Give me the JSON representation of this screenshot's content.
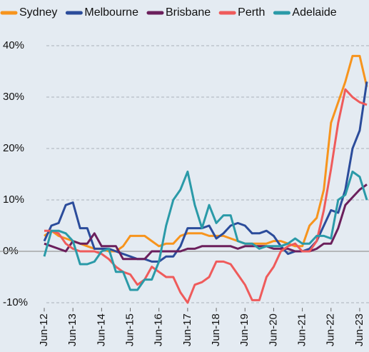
{
  "chart_data": {
    "type": "line",
    "categories": [
      "Jun-12",
      null,
      null,
      null,
      "Jun-13",
      null,
      null,
      null,
      "Jun-14",
      null,
      null,
      null,
      "Jun-15",
      null,
      null,
      null,
      "Jun-16",
      null,
      null,
      null,
      "Jun-17",
      null,
      null,
      null,
      "Jun-18",
      null,
      null,
      null,
      "Jun-19",
      null,
      null,
      null,
      "Jun-20",
      null,
      null,
      null,
      "Jun-21",
      null,
      null,
      null,
      "Jun-22",
      null,
      null,
      null,
      "Jun-23",
      null
    ],
    "series": [
      {
        "name": "Sydney",
        "color": "#f7941d",
        "values": [
          3,
          4,
          3,
          2.5,
          2,
          1.5,
          1,
          0.5,
          0.5,
          0,
          0,
          1,
          3,
          3,
          3,
          2,
          1,
          1.5,
          1.5,
          3,
          3.5,
          3.5,
          3.5,
          3,
          3,
          3,
          2.5,
          2,
          1.5,
          1.5,
          1.5,
          1.5,
          2,
          2,
          1.5,
          1,
          1,
          5,
          6.5,
          12,
          25,
          29,
          33,
          38,
          38,
          32
        ]
      },
      {
        "name": "Melbourne",
        "color": "#2b4c9b",
        "values": [
          2,
          5,
          5.5,
          9,
          9.5,
          4.5,
          4.5,
          0.5,
          0.5,
          0.5,
          0,
          -0.5,
          -1,
          -1.5,
          -1.5,
          -2,
          -2,
          -1,
          -1,
          1,
          4.5,
          4.5,
          4.5,
          5,
          2.5,
          3.5,
          5,
          5.5,
          5,
          3.5,
          3.5,
          4,
          3,
          1,
          -0.5,
          0,
          0,
          0.5,
          2,
          5,
          8,
          7.5,
          12,
          20,
          23.5,
          33
        ]
      },
      {
        "name": "Brisbane",
        "color": "#6b1f5c",
        "values": [
          1.5,
          1,
          0.5,
          0,
          2,
          1.5,
          1.5,
          3.5,
          1,
          1,
          1,
          -1.5,
          -1.5,
          -1.5,
          -1.5,
          0,
          0,
          0,
          0,
          0,
          0.5,
          0.5,
          1,
          1,
          1,
          1,
          1,
          0.5,
          1,
          1,
          1,
          1,
          0.5,
          0.5,
          0.5,
          0,
          0,
          0,
          0.5,
          1.5,
          1.5,
          4.5,
          9,
          10.5,
          12,
          13
        ]
      },
      {
        "name": "Perth",
        "color": "#ef5b5b",
        "values": [
          4,
          4,
          3.5,
          1.5,
          0.5,
          0,
          0,
          0,
          -0.5,
          -1.5,
          -3,
          -4,
          -4.5,
          -6.5,
          -5.5,
          -3,
          -4,
          -5,
          -5,
          -8,
          -10,
          -6.5,
          -6,
          -5,
          -2,
          -2,
          -2.5,
          -4.5,
          -6.5,
          -9.5,
          -9.5,
          -5,
          -3,
          0,
          1,
          1.5,
          0,
          0,
          2,
          8,
          16,
          25,
          31.5,
          30,
          29,
          28.5
        ]
      },
      {
        "name": "Adelaide",
        "color": "#2a9aa8",
        "values": [
          -1,
          4,
          4,
          3.5,
          2,
          -2.5,
          -2.5,
          -2,
          0,
          0.5,
          -4,
          -4,
          -7.5,
          -7.5,
          -5.5,
          -5.5,
          -2,
          5,
          10,
          12,
          15.5,
          9,
          4.5,
          9,
          5.5,
          7,
          7,
          2,
          1.5,
          1.5,
          0.5,
          1,
          1,
          1,
          1.5,
          2.5,
          1.5,
          1.5,
          3,
          3,
          2.5,
          10,
          11,
          15.5,
          14.5,
          10
        ]
      }
    ],
    "ylim": [
      -11,
      41
    ],
    "yticks": [
      {
        "value": -10,
        "label": "-10%"
      },
      {
        "value": 0,
        "label": "0%"
      },
      {
        "value": 10,
        "label": "10%"
      },
      {
        "value": 20,
        "label": "20%"
      },
      {
        "value": 30,
        "label": "30%"
      },
      {
        "value": 40,
        "label": "40%"
      }
    ],
    "grid": true,
    "legend": "top"
  }
}
